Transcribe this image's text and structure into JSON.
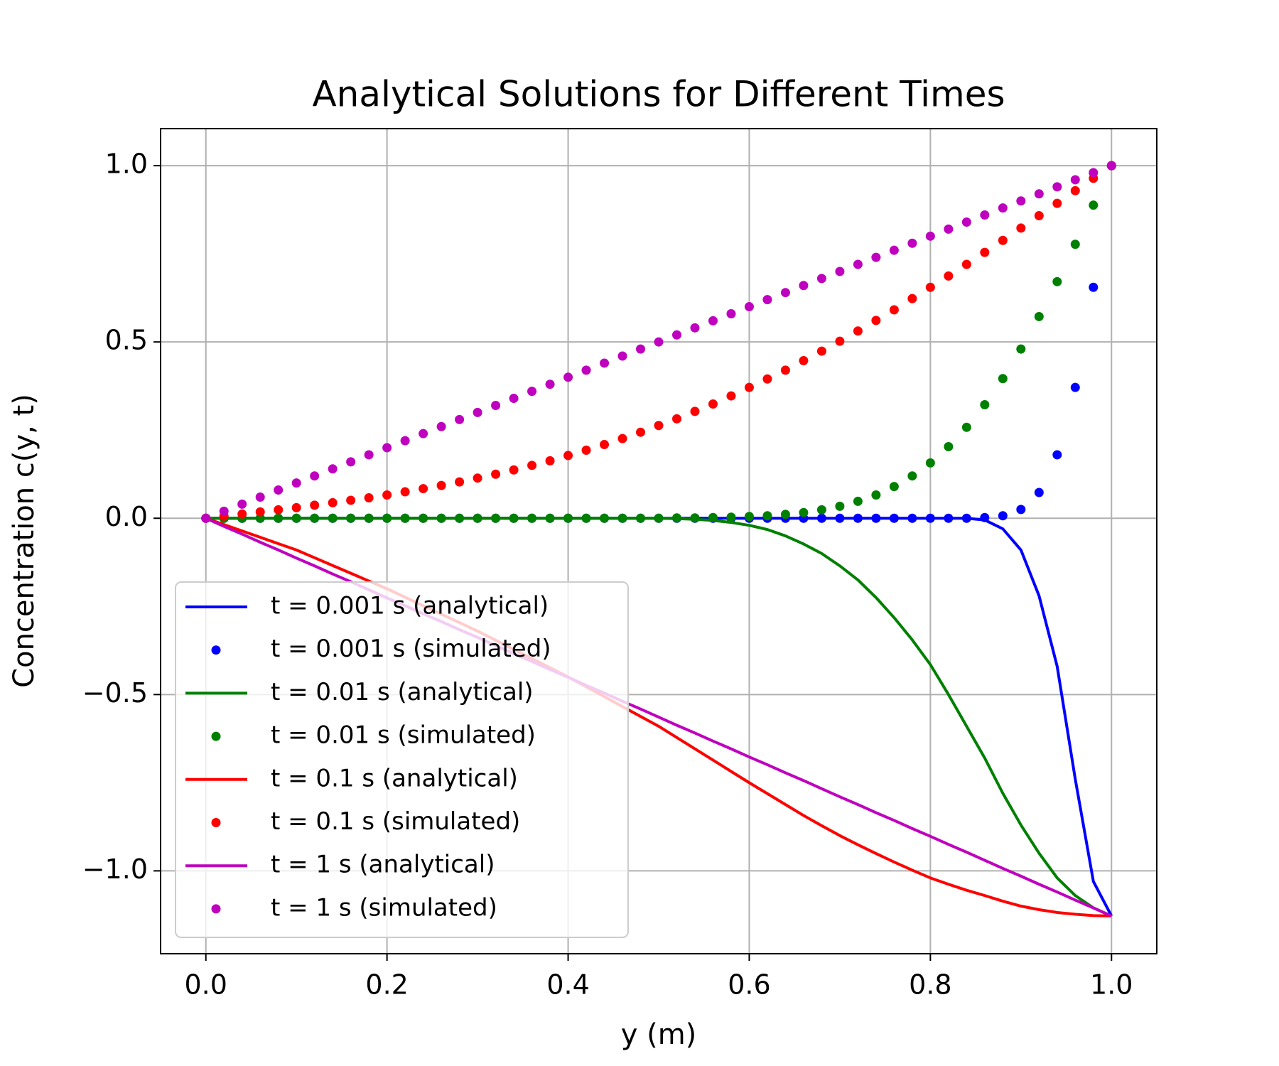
{
  "chart_data": {
    "type": "line",
    "title": "Analytical Solutions for Different Times",
    "xlabel": "y (m)",
    "ylabel": "Concentration c(y, t)",
    "x": [
      0,
      0.02,
      0.04,
      0.06,
      0.08,
      0.1,
      0.12,
      0.14,
      0.16,
      0.18,
      0.2,
      0.22,
      0.24,
      0.26,
      0.28,
      0.3,
      0.32,
      0.34,
      0.36,
      0.38,
      0.4,
      0.42,
      0.44,
      0.46,
      0.48,
      0.5,
      0.52,
      0.54,
      0.56,
      0.58,
      0.6,
      0.62,
      0.64,
      0.66,
      0.68,
      0.7,
      0.72,
      0.74,
      0.76,
      0.78,
      0.8,
      0.82,
      0.84,
      0.86,
      0.88,
      0.9,
      0.92,
      0.94,
      0.96,
      0.98,
      1
    ],
    "series": [
      {
        "name": "t = 0.001 s (analytical)",
        "color": "#0000ff",
        "kind": "line",
        "values": [
          0,
          0,
          0,
          0,
          0,
          0,
          0,
          0,
          0,
          0,
          0,
          0,
          0,
          0,
          0,
          0,
          0,
          0,
          0,
          0,
          0,
          0,
          0,
          0,
          0,
          0,
          0,
          0,
          0,
          0,
          0,
          0,
          0,
          0,
          0,
          0,
          0,
          0,
          0,
          0,
          0,
          0,
          0,
          -0.005,
          -0.03,
          -0.09,
          -0.22,
          -0.42,
          -0.74,
          -1.03,
          -1.128
        ]
      },
      {
        "name": "t = 0.001 s (simulated)",
        "color": "#0000ff",
        "kind": "scatter",
        "values": [
          0,
          0,
          0,
          0,
          0,
          0,
          0,
          0,
          0,
          0,
          0,
          0,
          0,
          0,
          0,
          0,
          0,
          0,
          0,
          0,
          0,
          0,
          0,
          0,
          0,
          0,
          0,
          0,
          0,
          0,
          0,
          0,
          0,
          0,
          0,
          0,
          0,
          0,
          0,
          0,
          0,
          0,
          0,
          0.002,
          0.007,
          0.025,
          0.073,
          0.18,
          0.371,
          0.655,
          1
        ]
      },
      {
        "name": "t = 0.01 s (analytical)",
        "color": "#008000",
        "kind": "line",
        "values": [
          0,
          0,
          0,
          0,
          0,
          0,
          0,
          0,
          0,
          0,
          0,
          0,
          0,
          0,
          0,
          0,
          0,
          0,
          0,
          0,
          0,
          0,
          0,
          0,
          0,
          0,
          -0.001,
          -0.003,
          -0.006,
          -0.012,
          -0.02,
          -0.032,
          -0.05,
          -0.073,
          -0.1,
          -0.135,
          -0.175,
          -0.225,
          -0.282,
          -0.345,
          -0.415,
          -0.5,
          -0.59,
          -0.68,
          -0.78,
          -0.87,
          -0.95,
          -1.02,
          -1.07,
          -1.105,
          -1.128
        ]
      },
      {
        "name": "t = 0.01 s (simulated)",
        "color": "#008000",
        "kind": "scatter",
        "values": [
          0,
          0,
          0,
          0,
          0,
          0,
          0,
          0,
          0,
          0,
          0,
          0,
          0,
          0,
          0,
          0,
          0,
          0,
          0,
          0,
          0,
          0,
          0,
          0,
          0,
          0,
          0.001,
          0.001,
          0.002,
          0.003,
          0.005,
          0.007,
          0.011,
          0.016,
          0.024,
          0.034,
          0.048,
          0.066,
          0.09,
          0.12,
          0.157,
          0.203,
          0.258,
          0.322,
          0.396,
          0.48,
          0.572,
          0.671,
          0.777,
          0.888,
          1
        ]
      },
      {
        "name": "t = 0.1 s (analytical)",
        "color": "#ff0000",
        "kind": "line",
        "values": [
          0,
          -0.018,
          -0.036,
          -0.054,
          -0.072,
          -0.09,
          -0.112,
          -0.134,
          -0.156,
          -0.178,
          -0.2,
          -0.224,
          -0.248,
          -0.272,
          -0.296,
          -0.32,
          -0.346,
          -0.372,
          -0.398,
          -0.424,
          -0.45,
          -0.478,
          -0.506,
          -0.534,
          -0.562,
          -0.59,
          -0.622,
          -0.654,
          -0.686,
          -0.718,
          -0.75,
          -0.781,
          -0.812,
          -0.843,
          -0.872,
          -0.9,
          -0.926,
          -0.951,
          -0.975,
          -0.998,
          -1.02,
          -1.038,
          -1.055,
          -1.07,
          -1.086,
          -1.1,
          -1.11,
          -1.118,
          -1.123,
          -1.127,
          -1.128
        ]
      },
      {
        "name": "t = 0.1 s (simulated)",
        "color": "#ff0000",
        "kind": "scatter",
        "values": [
          0,
          0.006,
          0.012,
          0.018,
          0.024,
          0.03,
          0.037,
          0.044,
          0.051,
          0.058,
          0.066,
          0.075,
          0.084,
          0.093,
          0.103,
          0.114,
          0.125,
          0.137,
          0.15,
          0.163,
          0.178,
          0.193,
          0.209,
          0.226,
          0.244,
          0.263,
          0.282,
          0.303,
          0.324,
          0.347,
          0.371,
          0.395,
          0.42,
          0.447,
          0.474,
          0.502,
          0.531,
          0.561,
          0.591,
          0.623,
          0.655,
          0.687,
          0.72,
          0.754,
          0.788,
          0.823,
          0.858,
          0.893,
          0.929,
          0.964,
          1
        ]
      },
      {
        "name": "t = 1 s (analytical)",
        "color": "#bf00bf",
        "kind": "line",
        "values": [
          0,
          -0.023,
          -0.045,
          -0.068,
          -0.09,
          -0.113,
          -0.135,
          -0.158,
          -0.18,
          -0.203,
          -0.226,
          -0.248,
          -0.271,
          -0.293,
          -0.316,
          -0.338,
          -0.361,
          -0.384,
          -0.406,
          -0.429,
          -0.451,
          -0.474,
          -0.496,
          -0.519,
          -0.541,
          -0.564,
          -0.587,
          -0.609,
          -0.632,
          -0.654,
          -0.677,
          -0.699,
          -0.722,
          -0.744,
          -0.767,
          -0.79,
          -0.812,
          -0.835,
          -0.857,
          -0.88,
          -0.902,
          -0.925,
          -0.947,
          -0.97,
          -0.993,
          -1.015,
          -1.038,
          -1.06,
          -1.083,
          -1.105,
          -1.128
        ]
      },
      {
        "name": "t = 1 s (simulated)",
        "color": "#bf00bf",
        "kind": "scatter",
        "values": [
          0,
          0.02,
          0.04,
          0.06,
          0.08,
          0.1,
          0.12,
          0.14,
          0.16,
          0.18,
          0.2,
          0.22,
          0.24,
          0.26,
          0.28,
          0.3,
          0.32,
          0.34,
          0.36,
          0.38,
          0.4,
          0.42,
          0.44,
          0.46,
          0.48,
          0.5,
          0.52,
          0.54,
          0.56,
          0.58,
          0.6,
          0.62,
          0.64,
          0.66,
          0.68,
          0.7,
          0.72,
          0.74,
          0.76,
          0.78,
          0.8,
          0.82,
          0.84,
          0.86,
          0.88,
          0.9,
          0.92,
          0.94,
          0.96,
          0.98,
          1
        ]
      }
    ],
    "xlim": [
      -0.05,
      1.05
    ],
    "ylim": [
      -1.235,
      1.105
    ],
    "xticks": [
      {
        "value": 0,
        "label": "0.0"
      },
      {
        "value": 0.2,
        "label": "0.2"
      },
      {
        "value": 0.4,
        "label": "0.4"
      },
      {
        "value": 0.6,
        "label": "0.6"
      },
      {
        "value": 0.8,
        "label": "0.8"
      },
      {
        "value": 1,
        "label": "1.0"
      }
    ],
    "yticks": [
      {
        "value": -1,
        "label": "−1.0"
      },
      {
        "value": -0.5,
        "label": "−0.5"
      },
      {
        "value": 0,
        "label": "0.0"
      },
      {
        "value": 0.5,
        "label": "0.5"
      },
      {
        "value": 1,
        "label": "1.0"
      }
    ],
    "grid": true,
    "legend": "lower left"
  }
}
